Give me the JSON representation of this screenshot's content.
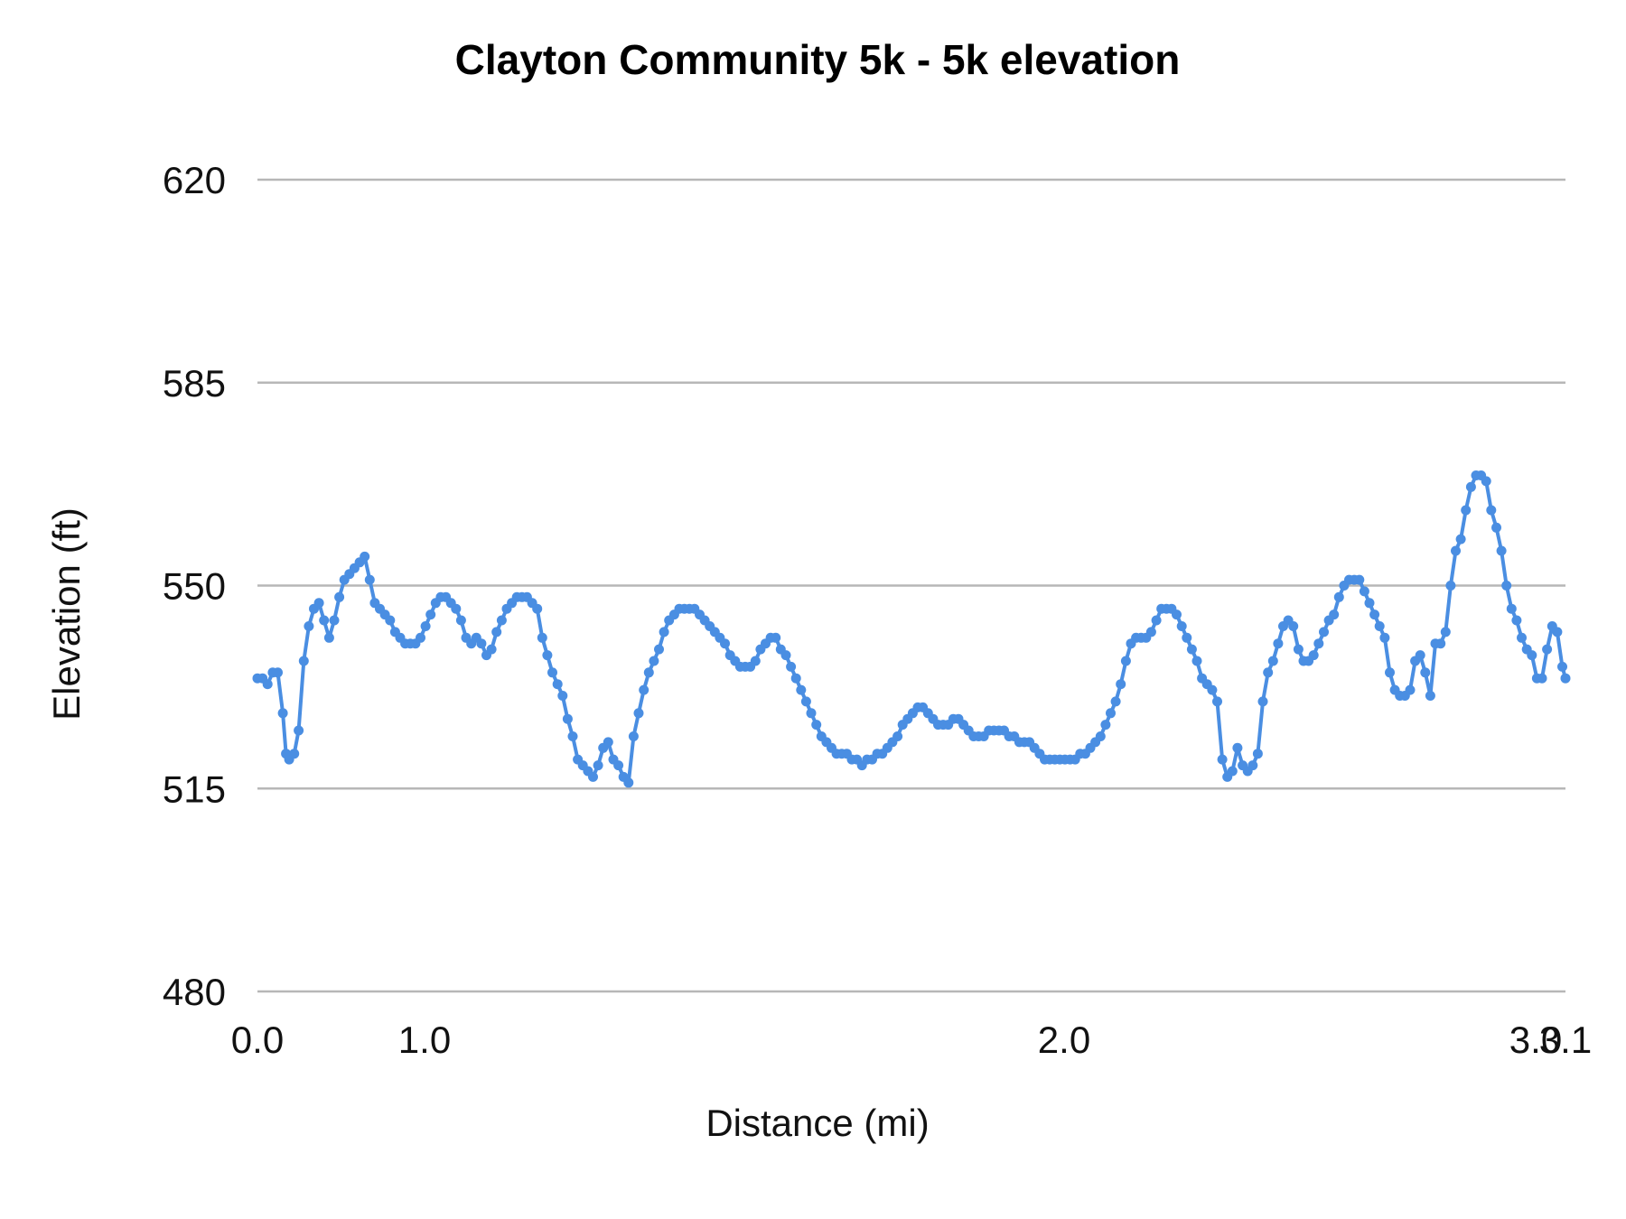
{
  "chart_data": {
    "type": "line",
    "title": "Clayton Community 5k - 5k elevation",
    "xlabel": "Distance (mi)",
    "ylabel": "Elevation (ft)",
    "xlim": [
      0.0,
      3.1
    ],
    "ylim": [
      480,
      620
    ],
    "y_ticks": [
      "480",
      "515",
      "550",
      "585",
      "620"
    ],
    "x_ticks": [
      {
        "value": 0.0,
        "label": "0.0"
      },
      {
        "value": 1.0,
        "label": "1.0"
      },
      {
        "value": 2.0,
        "label": "2.0"
      },
      {
        "value": 3.0,
        "label": "3.0"
      },
      {
        "value": 3.1,
        "label": "3.1"
      }
    ],
    "grid": true,
    "legend": "none",
    "series_color": "#4a8ee2",
    "points": [
      [
        0.0,
        534
      ],
      [
        0.008,
        534
      ],
      [
        0.016,
        533
      ],
      [
        0.024,
        535
      ],
      [
        0.032,
        535
      ],
      [
        0.04,
        528
      ],
      [
        0.045,
        521
      ],
      [
        0.05,
        520
      ],
      [
        0.058,
        521
      ],
      [
        0.065,
        525
      ],
      [
        0.073,
        537
      ],
      [
        0.081,
        543
      ],
      [
        0.089,
        546
      ],
      [
        0.097,
        547
      ],
      [
        0.105,
        544
      ],
      [
        0.113,
        541
      ],
      [
        0.121,
        544
      ],
      [
        0.129,
        548
      ],
      [
        0.137,
        551
      ],
      [
        0.145,
        552
      ],
      [
        0.153,
        553
      ],
      [
        0.161,
        554
      ],
      [
        0.169,
        555
      ],
      [
        0.177,
        551
      ],
      [
        0.185,
        547
      ],
      [
        0.193,
        546
      ],
      [
        0.201,
        545
      ],
      [
        0.209,
        544
      ],
      [
        0.217,
        542
      ],
      [
        0.225,
        541
      ],
      [
        0.233,
        540
      ],
      [
        0.241,
        540
      ],
      [
        0.249,
        540
      ],
      [
        0.257,
        541
      ],
      [
        0.265,
        543
      ],
      [
        0.273,
        545
      ],
      [
        0.281,
        547
      ],
      [
        0.289,
        548
      ],
      [
        0.297,
        548
      ],
      [
        0.305,
        547
      ],
      [
        0.313,
        546
      ],
      [
        0.321,
        544
      ],
      [
        0.329,
        541
      ],
      [
        0.337,
        540
      ],
      [
        0.345,
        541
      ],
      [
        0.353,
        540
      ],
      [
        0.361,
        538
      ],
      [
        0.369,
        539
      ],
      [
        0.377,
        542
      ],
      [
        0.385,
        544
      ],
      [
        0.393,
        546
      ],
      [
        0.401,
        547
      ],
      [
        0.409,
        548
      ],
      [
        0.417,
        548
      ],
      [
        0.425,
        548
      ],
      [
        0.433,
        547
      ],
      [
        0.441,
        546
      ],
      [
        0.449,
        541
      ],
      [
        0.457,
        538
      ],
      [
        0.465,
        535
      ],
      [
        0.473,
        533
      ],
      [
        0.481,
        531
      ],
      [
        0.489,
        527
      ],
      [
        0.497,
        524
      ],
      [
        0.505,
        520
      ],
      [
        0.513,
        519
      ],
      [
        0.521,
        518
      ],
      [
        0.529,
        517
      ],
      [
        0.537,
        519
      ],
      [
        0.545,
        522
      ],
      [
        0.553,
        523
      ],
      [
        0.561,
        520
      ],
      [
        0.569,
        519
      ],
      [
        0.577,
        517
      ],
      [
        0.585,
        516
      ],
      [
        0.593,
        524
      ],
      [
        0.601,
        528
      ],
      [
        0.609,
        532
      ],
      [
        0.617,
        535
      ],
      [
        0.625,
        537
      ],
      [
        0.633,
        539
      ],
      [
        0.641,
        542
      ],
      [
        0.649,
        544
      ],
      [
        0.657,
        545
      ],
      [
        0.665,
        546
      ],
      [
        0.673,
        546
      ],
      [
        0.681,
        546
      ],
      [
        0.689,
        546
      ],
      [
        0.697,
        545
      ],
      [
        0.705,
        544
      ],
      [
        0.713,
        543
      ],
      [
        0.721,
        542
      ],
      [
        0.729,
        541
      ],
      [
        0.737,
        540
      ],
      [
        0.745,
        538
      ],
      [
        0.753,
        537
      ],
      [
        0.761,
        536
      ],
      [
        0.769,
        536
      ],
      [
        0.777,
        536
      ],
      [
        0.785,
        537
      ],
      [
        0.793,
        539
      ],
      [
        0.801,
        540
      ],
      [
        0.809,
        541
      ],
      [
        0.817,
        541
      ],
      [
        0.825,
        539
      ],
      [
        0.833,
        538
      ],
      [
        0.841,
        536
      ],
      [
        0.849,
        534
      ],
      [
        0.857,
        532
      ],
      [
        0.865,
        530
      ],
      [
        0.873,
        528
      ],
      [
        0.881,
        526
      ],
      [
        0.889,
        524
      ],
      [
        0.897,
        523
      ],
      [
        0.905,
        522
      ],
      [
        0.913,
        521
      ],
      [
        0.921,
        521
      ],
      [
        0.929,
        521
      ],
      [
        0.937,
        520
      ],
      [
        0.945,
        520
      ],
      [
        0.953,
        519
      ],
      [
        0.961,
        520
      ],
      [
        0.969,
        520
      ],
      [
        0.977,
        521
      ],
      [
        0.985,
        521
      ],
      [
        0.993,
        522
      ],
      [
        1.001,
        523
      ],
      [
        1.009,
        524
      ],
      [
        1.017,
        526
      ],
      [
        1.025,
        527
      ],
      [
        1.033,
        528
      ],
      [
        1.041,
        529
      ],
      [
        1.049,
        529
      ],
      [
        1.057,
        528
      ],
      [
        1.065,
        527
      ],
      [
        1.073,
        526
      ],
      [
        1.081,
        526
      ],
      [
        1.089,
        526
      ],
      [
        1.097,
        527
      ],
      [
        1.105,
        527
      ],
      [
        1.113,
        526
      ],
      [
        1.121,
        525
      ],
      [
        1.129,
        524
      ],
      [
        1.137,
        524
      ],
      [
        1.145,
        524
      ],
      [
        1.153,
        525
      ],
      [
        1.161,
        525
      ],
      [
        1.169,
        525
      ],
      [
        1.177,
        525
      ],
      [
        1.185,
        524
      ],
      [
        1.193,
        524
      ],
      [
        1.201,
        523
      ],
      [
        1.209,
        523
      ],
      [
        1.217,
        523
      ],
      [
        1.225,
        522
      ],
      [
        1.233,
        521
      ],
      [
        1.241,
        520
      ],
      [
        1.249,
        520
      ],
      [
        1.257,
        520
      ],
      [
        1.265,
        520
      ],
      [
        1.273,
        520
      ],
      [
        1.281,
        520
      ],
      [
        1.289,
        520
      ],
      [
        1.297,
        521
      ],
      [
        1.305,
        521
      ],
      [
        1.313,
        522
      ],
      [
        1.321,
        523
      ],
      [
        1.329,
        524
      ],
      [
        1.337,
        526
      ],
      [
        1.345,
        528
      ],
      [
        1.353,
        530
      ],
      [
        1.361,
        533
      ],
      [
        1.369,
        537
      ],
      [
        1.377,
        540
      ],
      [
        1.385,
        541
      ],
      [
        1.393,
        541
      ],
      [
        1.401,
        541
      ],
      [
        1.409,
        542
      ],
      [
        1.417,
        544
      ],
      [
        1.425,
        546
      ],
      [
        1.433,
        546
      ],
      [
        1.441,
        546
      ],
      [
        1.449,
        545
      ],
      [
        1.457,
        543
      ],
      [
        1.465,
        541
      ],
      [
        1.473,
        539
      ],
      [
        1.481,
        537
      ],
      [
        1.489,
        534
      ],
      [
        1.497,
        533
      ],
      [
        1.505,
        532
      ],
      [
        1.513,
        530
      ],
      [
        1.521,
        520
      ],
      [
        1.529,
        517
      ],
      [
        1.537,
        518
      ],
      [
        1.545,
        522
      ],
      [
        1.553,
        519
      ],
      [
        1.561,
        518
      ],
      [
        1.569,
        519
      ],
      [
        1.577,
        521
      ],
      [
        1.585,
        530
      ],
      [
        1.593,
        535
      ],
      [
        1.601,
        537
      ],
      [
        1.609,
        540
      ],
      [
        1.617,
        543
      ],
      [
        1.625,
        544
      ],
      [
        1.633,
        543
      ],
      [
        1.641,
        539
      ],
      [
        1.649,
        537
      ],
      [
        1.657,
        537
      ],
      [
        1.665,
        538
      ],
      [
        1.673,
        540
      ],
      [
        1.681,
        542
      ],
      [
        1.689,
        544
      ],
      [
        1.697,
        545
      ],
      [
        1.705,
        548
      ],
      [
        1.713,
        550
      ],
      [
        1.721,
        551
      ],
      [
        1.729,
        551
      ],
      [
        1.737,
        551
      ],
      [
        1.745,
        549
      ],
      [
        1.753,
        547
      ],
      [
        1.761,
        545
      ],
      [
        1.769,
        543
      ],
      [
        1.777,
        541
      ],
      [
        1.785,
        535
      ],
      [
        1.793,
        532
      ],
      [
        1.801,
        531
      ],
      [
        1.809,
        531
      ],
      [
        1.817,
        532
      ],
      [
        1.825,
        537
      ],
      [
        1.833,
        538
      ],
      [
        1.841,
        535
      ],
      [
        1.849,
        531
      ],
      [
        1.857,
        540
      ],
      [
        1.865,
        540
      ],
      [
        1.873,
        542
      ],
      [
        1.881,
        550
      ],
      [
        1.889,
        556
      ],
      [
        1.897,
        558
      ],
      [
        1.905,
        563
      ],
      [
        1.913,
        567
      ],
      [
        1.921,
        569
      ],
      [
        1.929,
        569
      ],
      [
        1.937,
        568
      ],
      [
        1.945,
        563
      ],
      [
        1.953,
        560
      ],
      [
        1.961,
        556
      ],
      [
        1.969,
        550
      ],
      [
        1.977,
        546
      ],
      [
        1.985,
        544
      ],
      [
        1.993,
        541
      ],
      [
        2.001,
        539
      ],
      [
        2.009,
        538
      ],
      [
        2.017,
        534
      ],
      [
        2.025,
        534
      ],
      [
        2.033,
        539
      ],
      [
        2.041,
        543
      ],
      [
        2.049,
        542
      ],
      [
        2.057,
        536
      ],
      [
        2.062,
        534
      ]
    ]
  }
}
